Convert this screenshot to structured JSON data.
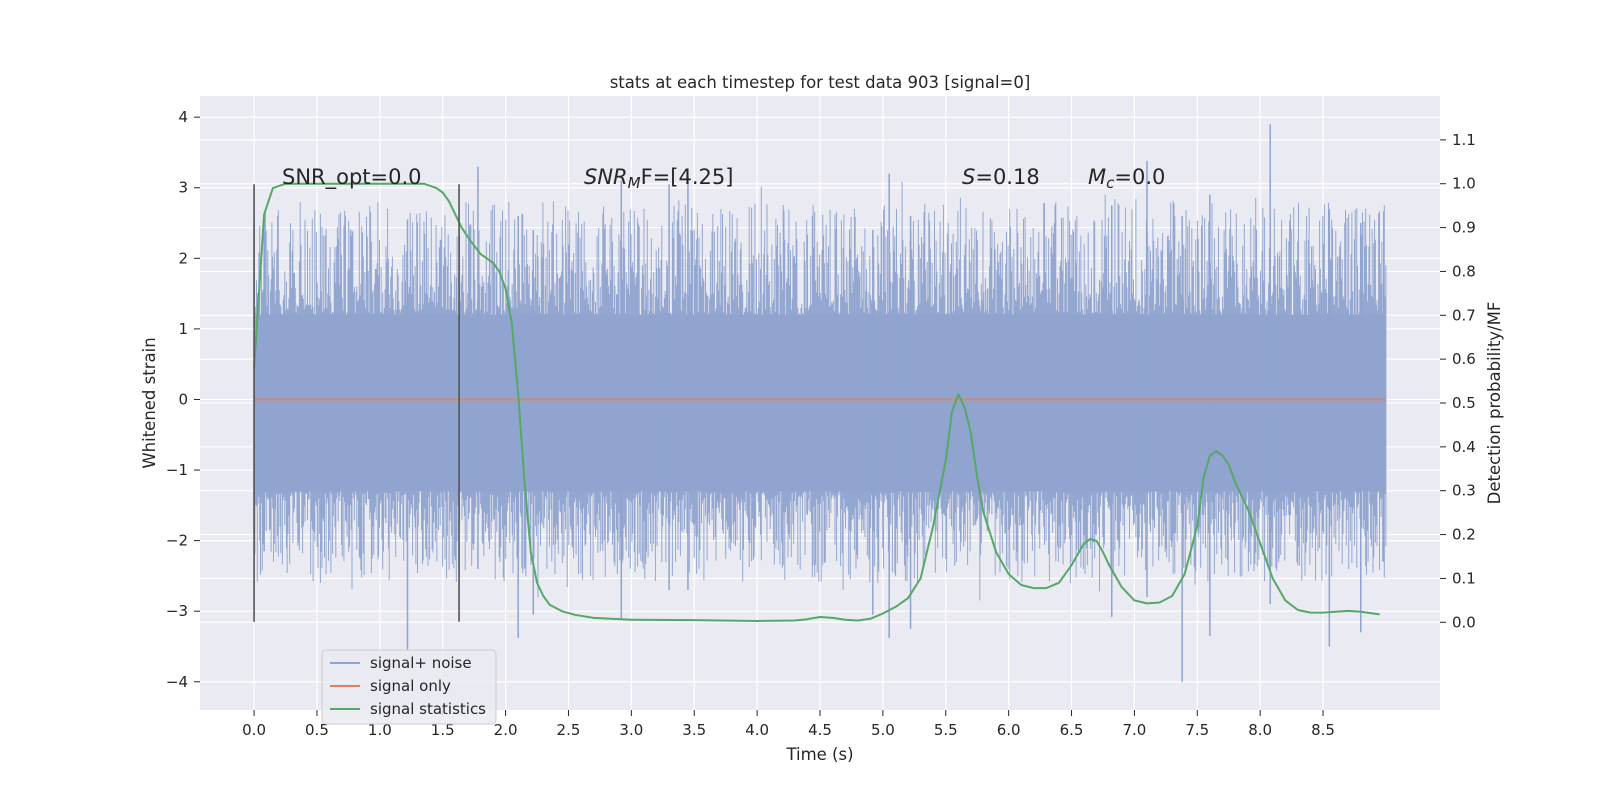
{
  "chart_data": {
    "type": "line",
    "title": "stats at each timestep for test data 903 [signal=0]",
    "xlabel": "Time (s)",
    "ylabel_left": "Whitened strain",
    "ylabel_right": "Detection probability/MF",
    "xlim": [
      -0.43,
      9.43
    ],
    "ylim_left": [
      -4.4,
      4.3
    ],
    "ylim_right": [
      -0.2,
      1.2
    ],
    "x_ticks": [
      "0.0",
      "0.5",
      "1.0",
      "1.5",
      "2.0",
      "2.5",
      "3.0",
      "3.5",
      "4.0",
      "4.5",
      "5.0",
      "5.5",
      "6.0",
      "6.5",
      "7.0",
      "7.5",
      "8.0",
      "8.5"
    ],
    "y_ticks_left": [
      "4",
      "3",
      "2",
      "1",
      "0",
      "−1",
      "−2",
      "−3",
      "−4"
    ],
    "y_ticks_right": [
      "1.1",
      "1.0",
      "0.9",
      "0.8",
      "0.7",
      "0.6",
      "0.5",
      "0.4",
      "0.3",
      "0.2",
      "0.1",
      "0.0"
    ],
    "grid": true,
    "legend_position": "bottom-left",
    "annotations": {
      "snr_opt": "SNR_opt=0.0",
      "snr_mf_italic": "SNR",
      "snr_mf_sub": "M",
      "snr_mf_rest": "F=[4.25]",
      "s_italic": "S",
      "s_rest": "=0.18",
      "mc_italic": "M",
      "mc_sub": "c",
      "mc_rest": "=0.0"
    },
    "markers": [
      0.0,
      1.63
    ],
    "series": [
      {
        "name": "signal+ noise",
        "color": "#8fa3cf",
        "axis": "left",
        "x_range": [
          0.0,
          9.0
        ],
        "band_core": [
          -1.3,
          1.2
        ],
        "typical_extent": [
          -2.6,
          2.8
        ],
        "peaks": [
          {
            "x": 0.0,
            "lo": -2.0,
            "hi": 2.5
          },
          {
            "x": 0.08,
            "lo": -2.15,
            "hi": 2.35
          },
          {
            "x": 1.22,
            "lo": -3.55,
            "hi": 2.55
          },
          {
            "x": 1.78,
            "lo": -2.4,
            "hi": 3.3
          },
          {
            "x": 2.1,
            "lo": -3.38,
            "hi": 2.6
          },
          {
            "x": 2.22,
            "lo": -3.05,
            "hi": 2.4
          },
          {
            "x": 2.92,
            "lo": -3.1,
            "hi": 3.1
          },
          {
            "x": 3.3,
            "lo": -2.7,
            "hi": 3.05
          },
          {
            "x": 3.45,
            "lo": -2.7,
            "hi": 3.15
          },
          {
            "x": 4.92,
            "lo": -3.05,
            "hi": 2.4
          },
          {
            "x": 5.05,
            "lo": -3.38,
            "hi": 3.2
          },
          {
            "x": 5.22,
            "lo": -3.25,
            "hi": 2.6
          },
          {
            "x": 6.82,
            "lo": -3.08,
            "hi": 2.75
          },
          {
            "x": 7.1,
            "lo": -2.8,
            "hi": 3.38
          },
          {
            "x": 7.38,
            "lo": -4.0,
            "hi": 2.6
          },
          {
            "x": 7.6,
            "lo": -3.35,
            "hi": 2.9
          },
          {
            "x": 8.08,
            "lo": -2.9,
            "hi": 3.9
          },
          {
            "x": 8.55,
            "lo": -3.5,
            "hi": 2.7
          },
          {
            "x": 8.8,
            "lo": -3.3,
            "hi": 2.5
          },
          {
            "x": 8.98,
            "lo": -2.3,
            "hi": 1.65
          }
        ]
      },
      {
        "name": "signal only",
        "color": "#dd8452",
        "axis": "left",
        "x": [
          0.0,
          9.0
        ],
        "y": [
          0.0,
          0.0
        ]
      },
      {
        "name": "signal statistics",
        "color": "#55a868",
        "axis": "right",
        "x": [
          0.0,
          0.08,
          0.15,
          0.25,
          0.4,
          0.6,
          0.8,
          1.0,
          1.2,
          1.35,
          1.45,
          1.5,
          1.55,
          1.6,
          1.65,
          1.72,
          1.8,
          1.9,
          1.95,
          2.0,
          2.05,
          2.1,
          2.15,
          2.2,
          2.25,
          2.3,
          2.35,
          2.45,
          2.55,
          2.7,
          3.0,
          3.5,
          4.0,
          4.3,
          4.4,
          4.5,
          4.6,
          4.7,
          4.8,
          4.9,
          5.0,
          5.1,
          5.2,
          5.3,
          5.4,
          5.5,
          5.55,
          5.6,
          5.65,
          5.7,
          5.75,
          5.8,
          5.9,
          6.0,
          6.1,
          6.2,
          6.3,
          6.4,
          6.5,
          6.6,
          6.65,
          6.7,
          6.75,
          6.8,
          6.9,
          7.0,
          7.1,
          7.2,
          7.3,
          7.4,
          7.5,
          7.55,
          7.6,
          7.65,
          7.7,
          7.75,
          7.8,
          7.9,
          8.0,
          8.1,
          8.2,
          8.3,
          8.4,
          8.5,
          8.6,
          8.7,
          8.8,
          8.95
        ],
        "y": [
          0.58,
          0.93,
          0.99,
          1.0,
          1.0,
          1.0,
          1.0,
          1.0,
          1.0,
          1.0,
          0.99,
          0.98,
          0.96,
          0.93,
          0.9,
          0.87,
          0.84,
          0.82,
          0.8,
          0.76,
          0.68,
          0.52,
          0.32,
          0.16,
          0.09,
          0.06,
          0.04,
          0.025,
          0.017,
          0.01,
          0.006,
          0.005,
          0.003,
          0.004,
          0.007,
          0.012,
          0.01,
          0.006,
          0.004,
          0.008,
          0.02,
          0.035,
          0.055,
          0.1,
          0.22,
          0.37,
          0.48,
          0.52,
          0.49,
          0.43,
          0.33,
          0.25,
          0.16,
          0.11,
          0.085,
          0.078,
          0.078,
          0.09,
          0.13,
          0.18,
          0.19,
          0.185,
          0.16,
          0.13,
          0.08,
          0.05,
          0.043,
          0.045,
          0.06,
          0.11,
          0.22,
          0.33,
          0.38,
          0.39,
          0.38,
          0.36,
          0.32,
          0.26,
          0.18,
          0.1,
          0.05,
          0.028,
          0.022,
          0.022,
          0.024,
          0.026,
          0.024,
          0.018
        ]
      }
    ]
  }
}
